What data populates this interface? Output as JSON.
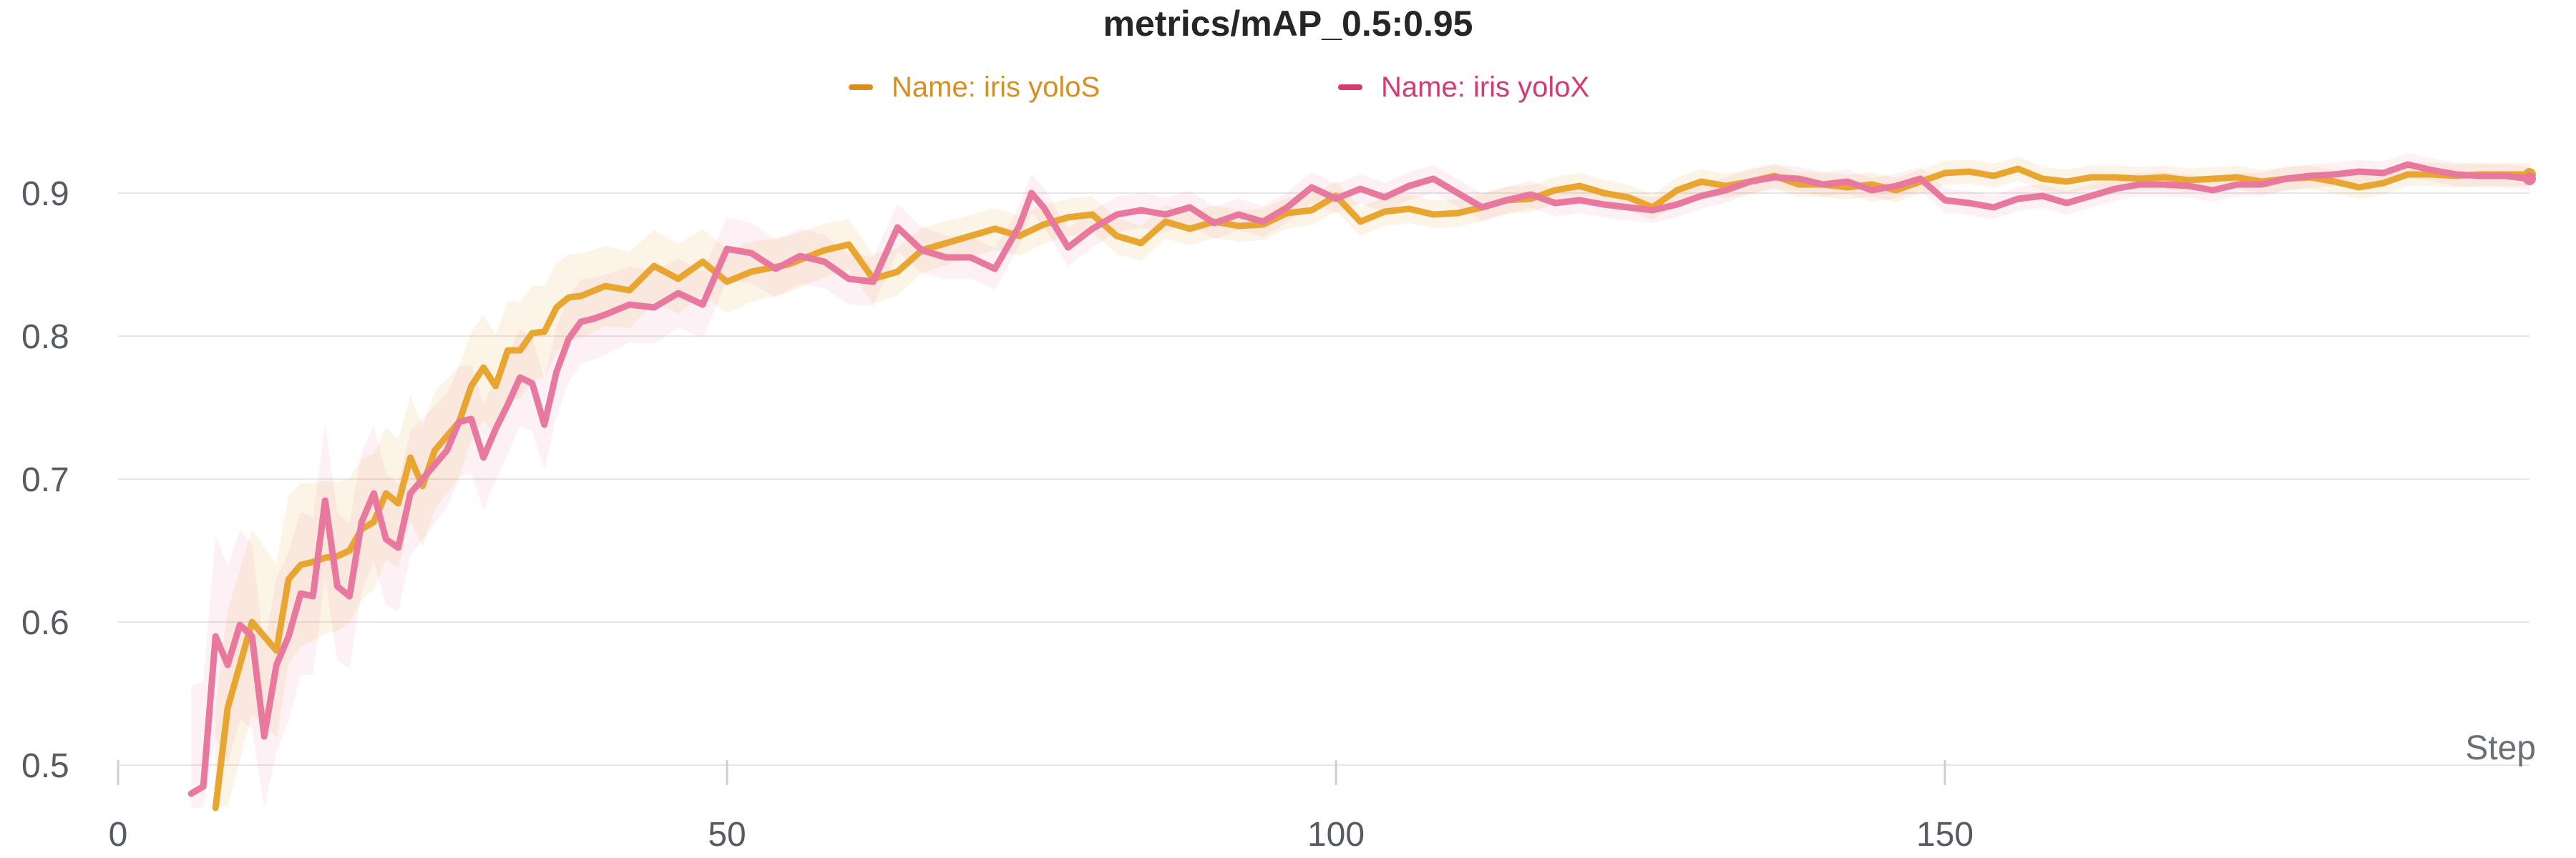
{
  "chart_data": {
    "type": "line",
    "title": "metrics/mAP_0.5:0.95",
    "xlabel": "Step",
    "ylabel": "",
    "xlim": [
      0,
      198
    ],
    "ylim": [
      0.49,
      0.96
    ],
    "xticks": [
      0,
      50,
      100,
      150
    ],
    "yticks": [
      0.5,
      0.6,
      0.7,
      0.8,
      0.9
    ],
    "grid": true,
    "legend": "top-center",
    "series": [
      {
        "name": "Name: iris yoloS",
        "color": "#e8a630",
        "legend_color": "#d69022",
        "x": [
          8,
          9,
          10,
          11,
          12,
          13,
          14,
          15,
          16,
          17,
          18,
          19,
          20,
          21,
          22,
          23,
          24,
          25,
          26,
          27,
          28,
          29,
          30,
          31,
          32,
          33,
          34,
          35,
          36,
          37,
          38,
          40,
          42,
          44,
          46,
          48,
          50,
          52,
          55,
          58,
          60,
          62,
          64,
          66,
          68,
          70,
          72,
          74,
          76,
          78,
          80,
          82,
          84,
          86,
          88,
          90,
          92,
          94,
          96,
          98,
          100,
          102,
          104,
          106,
          108,
          110,
          112,
          114,
          116,
          118,
          120,
          122,
          124,
          126,
          128,
          130,
          132,
          134,
          136,
          138,
          140,
          142,
          144,
          146,
          148,
          150,
          152,
          154,
          156,
          158,
          160,
          162,
          164,
          166,
          168,
          170,
          172,
          174,
          176,
          178,
          180,
          182,
          184,
          186,
          188,
          190,
          192,
          194,
          196,
          198
        ],
        "values": [
          0.47,
          0.54,
          0.57,
          0.6,
          0.59,
          0.58,
          0.63,
          0.64,
          0.642,
          0.645,
          0.646,
          0.65,
          0.665,
          0.67,
          0.69,
          0.683,
          0.715,
          0.695,
          0.72,
          0.73,
          0.74,
          0.765,
          0.778,
          0.765,
          0.79,
          0.79,
          0.802,
          0.803,
          0.82,
          0.827,
          0.828,
          0.835,
          0.832,
          0.849,
          0.84,
          0.852,
          0.838,
          0.845,
          0.85,
          0.86,
          0.864,
          0.84,
          0.845,
          0.86,
          0.865,
          0.87,
          0.875,
          0.87,
          0.878,
          0.883,
          0.885,
          0.87,
          0.865,
          0.88,
          0.875,
          0.88,
          0.877,
          0.878,
          0.886,
          0.888,
          0.898,
          0.88,
          0.887,
          0.889,
          0.885,
          0.886,
          0.89,
          0.895,
          0.896,
          0.902,
          0.905,
          0.9,
          0.897,
          0.89,
          0.902,
          0.908,
          0.905,
          0.908,
          0.912,
          0.906,
          0.906,
          0.904,
          0.906,
          0.902,
          0.908,
          0.914,
          0.915,
          0.912,
          0.917,
          0.91,
          0.908,
          0.911,
          0.911,
          0.91,
          0.911,
          0.909,
          0.91,
          0.911,
          0.908,
          0.91,
          0.911,
          0.908,
          0.904,
          0.907,
          0.913,
          0.913,
          0.912,
          0.913,
          0.913,
          0.913
        ]
      },
      {
        "name": "Name: iris yoloX",
        "color": "#e8789e",
        "legend_color": "#d63a73",
        "x": [
          6,
          7,
          8,
          9,
          10,
          11,
          12,
          13,
          14,
          15,
          16,
          17,
          18,
          19,
          20,
          21,
          22,
          23,
          24,
          25,
          26,
          27,
          28,
          29,
          30,
          31,
          32,
          33,
          34,
          35,
          36,
          37,
          38,
          39,
          40,
          42,
          44,
          46,
          48,
          50,
          52,
          54,
          56,
          58,
          60,
          62,
          64,
          66,
          68,
          70,
          72,
          74,
          75,
          76,
          78,
          80,
          82,
          84,
          86,
          88,
          90,
          92,
          94,
          96,
          98,
          100,
          102,
          104,
          106,
          108,
          110,
          112,
          114,
          116,
          118,
          120,
          122,
          124,
          126,
          128,
          130,
          132,
          134,
          136,
          138,
          140,
          142,
          144,
          146,
          148,
          150,
          152,
          154,
          156,
          158,
          160,
          162,
          164,
          166,
          168,
          170,
          172,
          174,
          176,
          178,
          180,
          182,
          184,
          186,
          188,
          190,
          192,
          194,
          196,
          198
        ],
        "values": [
          0.48,
          0.485,
          0.59,
          0.57,
          0.598,
          0.59,
          0.52,
          0.57,
          0.59,
          0.62,
          0.618,
          0.685,
          0.625,
          0.618,
          0.67,
          0.69,
          0.658,
          0.652,
          0.69,
          0.7,
          0.71,
          0.72,
          0.74,
          0.742,
          0.715,
          0.735,
          0.752,
          0.771,
          0.767,
          0.738,
          0.775,
          0.798,
          0.81,
          0.812,
          0.815,
          0.822,
          0.82,
          0.83,
          0.822,
          0.861,
          0.858,
          0.847,
          0.856,
          0.852,
          0.84,
          0.838,
          0.876,
          0.86,
          0.855,
          0.855,
          0.847,
          0.877,
          0.9,
          0.89,
          0.862,
          0.875,
          0.885,
          0.888,
          0.885,
          0.89,
          0.879,
          0.885,
          0.88,
          0.89,
          0.904,
          0.896,
          0.903,
          0.897,
          0.905,
          0.91,
          0.9,
          0.89,
          0.895,
          0.899,
          0.893,
          0.895,
          0.892,
          0.89,
          0.888,
          0.892,
          0.898,
          0.902,
          0.908,
          0.911,
          0.91,
          0.906,
          0.908,
          0.902,
          0.905,
          0.91,
          0.895,
          0.893,
          0.89,
          0.896,
          0.898,
          0.893,
          0.898,
          0.903,
          0.906,
          0.906,
          0.905,
          0.902,
          0.906,
          0.906,
          0.91,
          0.912,
          0.913,
          0.915,
          0.914,
          0.92,
          0.916,
          0.913,
          0.912,
          0.912,
          0.91
        ]
      }
    ]
  }
}
